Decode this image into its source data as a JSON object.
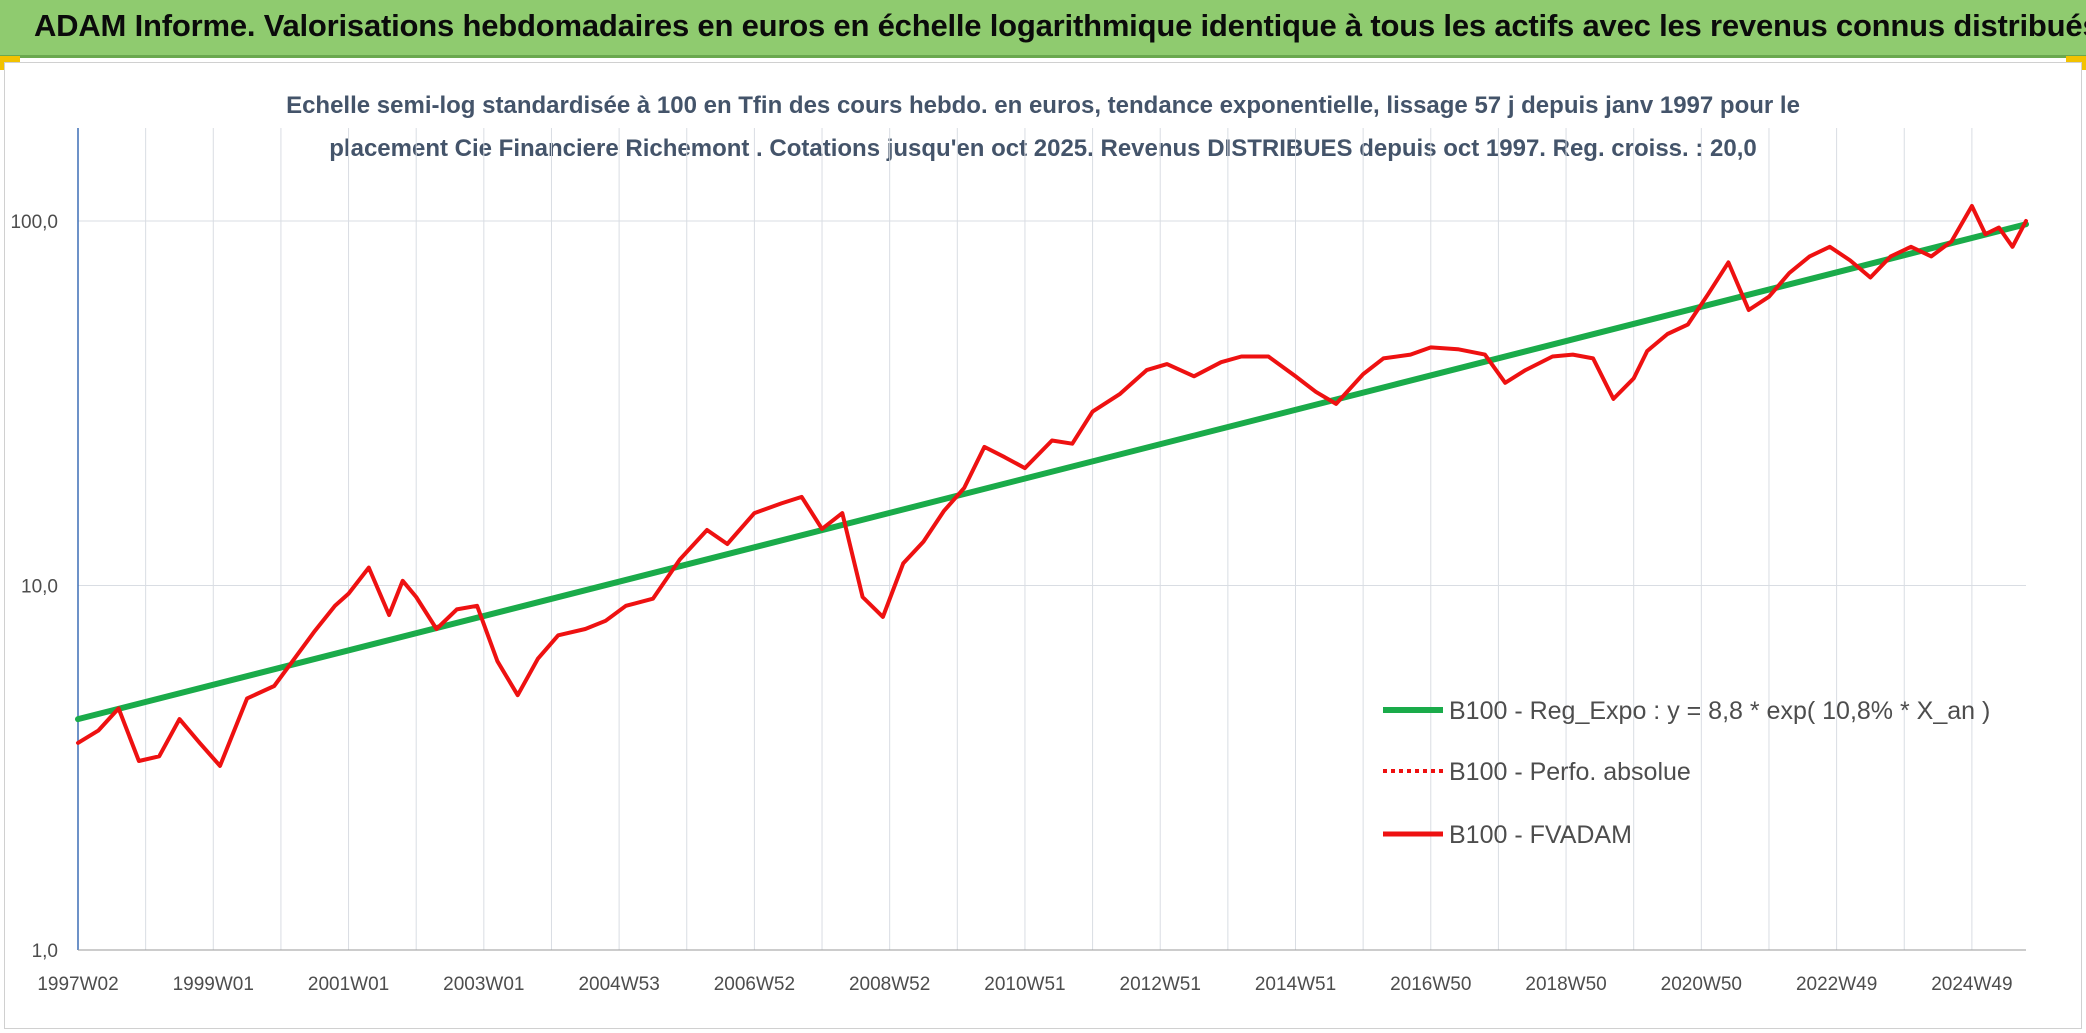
{
  "header": {
    "title": "ADAM Informe. Valorisations hebdomadaires en euros en échelle logarithmique identique à tous les actifs avec les revenus connus distribués"
  },
  "colors": {
    "banner": "#8fcb6f",
    "corner": "#f2c200",
    "trend": "#1aab4a",
    "fvadam": "#ee1111",
    "perf": "#ee1111",
    "grid": "#d9dde3",
    "axis": "#3d6fb6"
  },
  "chart_data": {
    "type": "line",
    "title_line1": "Echelle semi-log standardisée à 100 en Tfin des cours hebdo. en euros, tendance exponentielle, lissage 57 j depuis janv 1997 pour le",
    "title_line2": "placement Cie Financiere Richemont . Cotations jusqu'en oct 2025. Revenus DISTRIBUES depuis oct 1997. Reg. croiss. : 20,0",
    "y_scale": "log",
    "ylim": [
      1,
      180
    ],
    "y_ticks": [
      {
        "value": 1,
        "label": "1,0"
      },
      {
        "value": 10,
        "label": "10,0"
      },
      {
        "value": 100,
        "label": "100,0"
      }
    ],
    "xlim": [
      1997.0,
      2025.8
    ],
    "x_ticks": [
      {
        "value": 1997.0,
        "label": "1997W02"
      },
      {
        "value": 1999.0,
        "label": "1999W01"
      },
      {
        "value": 2001.0,
        "label": "2001W01"
      },
      {
        "value": 2003.0,
        "label": "2003W01"
      },
      {
        "value": 2005.0,
        "label": "2004W53"
      },
      {
        "value": 2007.0,
        "label": "2006W52"
      },
      {
        "value": 2009.0,
        "label": "2008W52"
      },
      {
        "value": 2011.0,
        "label": "2010W51"
      },
      {
        "value": 2013.0,
        "label": "2012W51"
      },
      {
        "value": 2015.0,
        "label": "2014W51"
      },
      {
        "value": 2017.0,
        "label": "2016W50"
      },
      {
        "value": 2019.0,
        "label": "2018W50"
      },
      {
        "value": 2021.0,
        "label": "2020W50"
      },
      {
        "value": 2023.0,
        "label": "2022W49"
      },
      {
        "value": 2025.0,
        "label": "2024W49"
      }
    ],
    "grid": true,
    "legend_position": "bottom-right",
    "series": [
      {
        "name": "B100 - Reg_Expo : y = 8,8 * exp( 10,8% *  X_an )",
        "style": "solid-thick",
        "color": "#1aab4a",
        "x": [
          1997.0,
          2025.8
        ],
        "y": [
          4.3,
          98
        ]
      },
      {
        "name": "B100 - Perfo. absolue",
        "style": "dotted",
        "color": "#ee1111",
        "x": [],
        "y": []
      },
      {
        "name": "B100 - FVADAM",
        "style": "solid",
        "color": "#ee1111",
        "x": [
          1997.0,
          1997.3,
          1997.6,
          1997.9,
          1998.2,
          1998.5,
          1998.8,
          1999.1,
          1999.5,
          1999.9,
          2000.2,
          2000.5,
          2000.8,
          2001.0,
          2001.3,
          2001.6,
          2001.8,
          2002.0,
          2002.3,
          2002.6,
          2002.9,
          2003.2,
          2003.5,
          2003.8,
          2004.1,
          2004.5,
          2004.8,
          2005.1,
          2005.5,
          2005.9,
          2006.3,
          2006.6,
          2007.0,
          2007.4,
          2007.7,
          2008.0,
          2008.3,
          2008.6,
          2008.9,
          2009.2,
          2009.5,
          2009.8,
          2010.1,
          2010.4,
          2010.7,
          2011.0,
          2011.4,
          2011.7,
          2012.0,
          2012.4,
          2012.8,
          2013.1,
          2013.5,
          2013.9,
          2014.2,
          2014.6,
          2015.0,
          2015.3,
          2015.6,
          2016.0,
          2016.3,
          2016.7,
          2017.0,
          2017.4,
          2017.8,
          2018.1,
          2018.4,
          2018.8,
          2019.1,
          2019.4,
          2019.7,
          2020.0,
          2020.2,
          2020.5,
          2020.8,
          2021.1,
          2021.4,
          2021.7,
          2022.0,
          2022.3,
          2022.6,
          2022.9,
          2023.2,
          2023.5,
          2023.8,
          2024.1,
          2024.4,
          2024.7,
          2025.0,
          2025.2,
          2025.4,
          2025.6,
          2025.8
        ],
        "y": [
          3.7,
          4.0,
          4.6,
          3.3,
          3.4,
          4.3,
          3.7,
          3.2,
          4.9,
          5.3,
          6.3,
          7.5,
          8.8,
          9.5,
          11.2,
          8.3,
          10.3,
          9.3,
          7.6,
          8.6,
          8.8,
          6.2,
          5.0,
          6.3,
          7.3,
          7.6,
          8.0,
          8.8,
          9.2,
          11.8,
          14.2,
          13.0,
          15.8,
          16.8,
          17.5,
          14.3,
          15.8,
          9.3,
          8.2,
          11.5,
          13.2,
          16.0,
          18.5,
          24.0,
          22.5,
          21.0,
          25.0,
          24.5,
          30.0,
          33.5,
          39.0,
          40.5,
          37.5,
          41.0,
          42.5,
          42.5,
          37.5,
          34.0,
          31.5,
          38.0,
          42.0,
          43.0,
          45.0,
          44.5,
          43.0,
          36.0,
          39.0,
          42.5,
          43.0,
          42.0,
          32.5,
          37.0,
          44.0,
          49.0,
          52.0,
          63.0,
          77.0,
          57.0,
          62.0,
          72.0,
          80.0,
          85.0,
          78.0,
          70.0,
          80.0,
          85.0,
          80.0,
          88.0,
          110.0,
          92.0,
          96.0,
          85.0,
          100.0
        ]
      }
    ]
  }
}
